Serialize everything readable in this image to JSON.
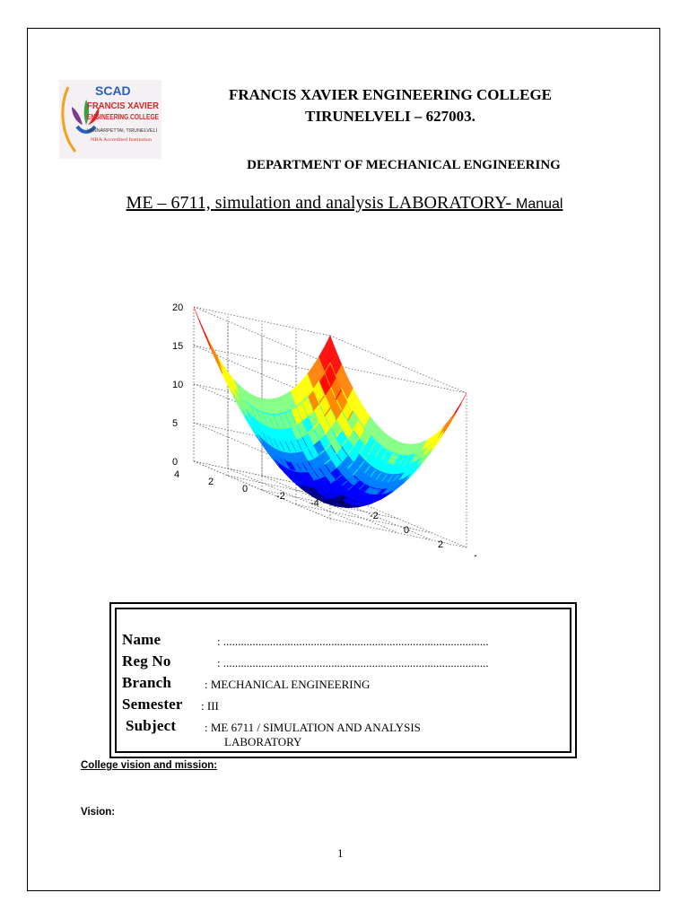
{
  "header": {
    "college_name": "FRANCIS XAVIER ENGINEERING COLLEGE",
    "city_line": "TIRUNELVELI – 627003.",
    "department": "DEPARTMENT OF MECHANICAL ENGINEERING"
  },
  "logo": {
    "brand": "SCAD",
    "line1": "FRANCIS XAVIER",
    "line2": "ENGINEERING COLLEGE",
    "location": "VANNARPETTAI, TIRUNELVELI",
    "accreditation": "NBA Accredited Institution",
    "colors": {
      "blue": "#2b5fb8",
      "red": "#cf2a26",
      "green": "#3aa043",
      "purple": "#7b3a91",
      "orange": "#f2a21a"
    }
  },
  "manual_title": {
    "main": "ME – 6711, simulation and analysis  LABORATORY- ",
    "suffix": "Manual"
  },
  "figure": {
    "z_ticks": [
      "0",
      "5",
      "10",
      "15",
      "20"
    ],
    "left_axis_ticks": [
      "4",
      "2",
      "0",
      "-2",
      "-4"
    ],
    "right_axis_ticks": [
      "-4",
      "-2",
      "0",
      "2",
      "4"
    ],
    "colormap": [
      "#00007f",
      "#0000ff",
      "#007fff",
      "#00ffff",
      "#7fff7f",
      "#ffff00",
      "#ff7f00",
      "#ff0000",
      "#7f0000"
    ]
  },
  "form": {
    "name_label": "Name",
    "name_value": ":  ...........................................................................................",
    "regno_label": "Reg No",
    "regno_value": ":  ...........................................................................................",
    "branch_label": "Branch",
    "branch_value": ": MECHANICAL ENGINEERING",
    "semester_label": "Semester",
    "semester_value": ":  III",
    "subject_label": "Subject",
    "subject_value_line1": ": ME 6711 / SIMULATION AND ANALYSIS",
    "subject_value_line2": "LABORATORY"
  },
  "footer": {
    "vision_mission_heading": "College vision and mission:",
    "vision_label": "Vision:",
    "page_number": "1"
  }
}
